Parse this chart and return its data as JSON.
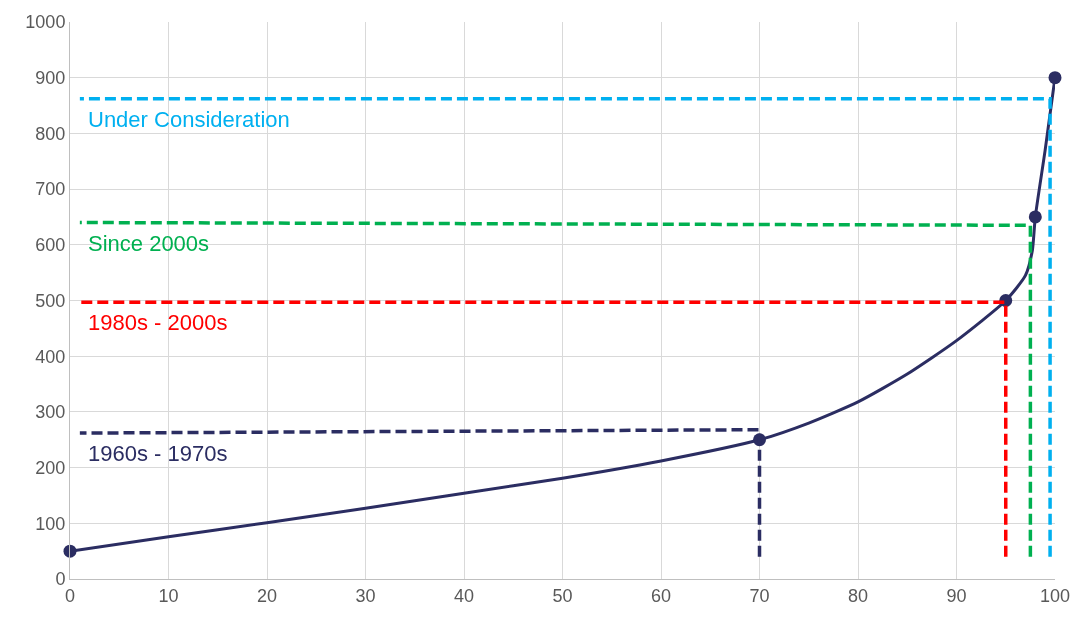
{
  "chart_data": {
    "type": "line",
    "xlim": [
      0,
      100
    ],
    "ylim": [
      0,
      1000
    ],
    "xticks": [
      0,
      10,
      20,
      30,
      40,
      50,
      60,
      70,
      80,
      90,
      100
    ],
    "yticks": [
      0,
      100,
      200,
      300,
      400,
      500,
      600,
      700,
      800,
      900,
      1000
    ],
    "grid": true,
    "series": [
      {
        "color": "#2b2d62",
        "marker": "none",
        "line_style": "solid",
        "x": [
          0,
          10,
          20,
          30,
          40,
          50,
          60,
          70,
          75,
          80,
          85,
          90,
          95,
          97,
          97.7,
          98,
          99,
          100
        ],
        "values": [
          50,
          76,
          101,
          127,
          154,
          181,
          212,
          250,
          280,
          318,
          368,
          428,
          500,
          545,
          590,
          650,
          770,
          900
        ]
      },
      {
        "type": "scatter",
        "color": "#2b2d62",
        "marker": "circle",
        "x": [
          0,
          70,
          95,
          98,
          100
        ],
        "values": [
          50,
          250,
          500,
          650,
          900
        ]
      },
      {
        "name": "1960s - 1970s",
        "color": "#2b2d62",
        "marker": "none",
        "line_style": "dashed",
        "x": [
          70,
          70,
          1
        ],
        "values": [
          40,
          268,
          262
        ]
      },
      {
        "name": "1980s - 2000s",
        "color": "#ff0000",
        "marker": "none",
        "line_style": "dashed",
        "x": [
          95,
          95,
          1
        ],
        "values": [
          40,
          497,
          497
        ]
      },
      {
        "name": "Since 2000s",
        "color": "#00b050",
        "marker": "none",
        "line_style": "dashed",
        "x": [
          97.5,
          97.5,
          1
        ],
        "values": [
          40,
          635,
          640
        ]
      },
      {
        "name": "Under Consideration",
        "color": "#00b0f0",
        "marker": "none",
        "line_style": "dashed",
        "x": [
          99.5,
          99.5,
          1
        ],
        "values": [
          40,
          862,
          862
        ]
      }
    ]
  }
}
